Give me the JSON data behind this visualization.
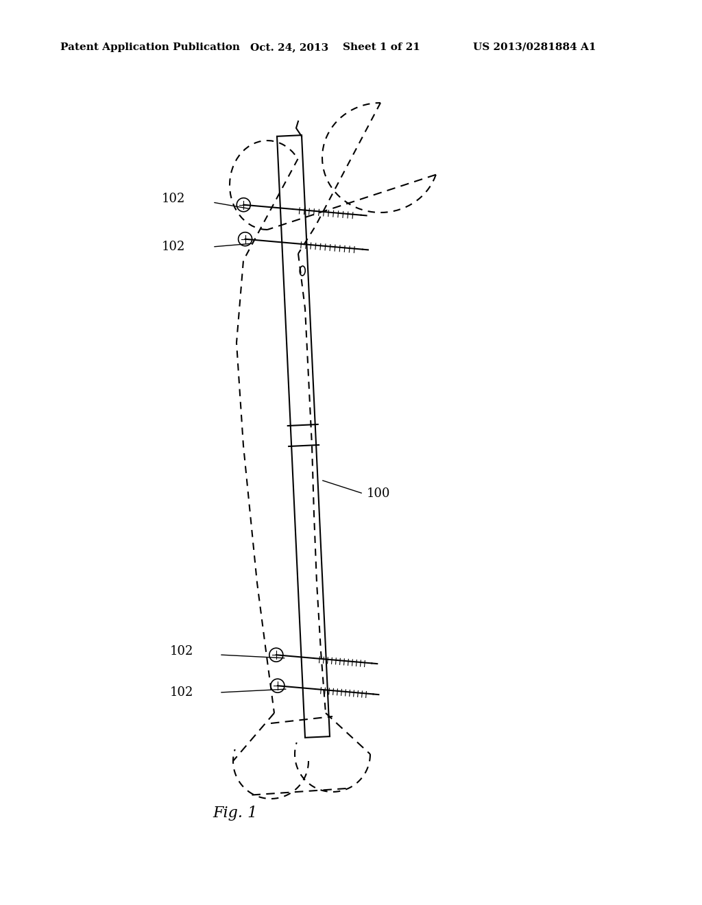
{
  "background_color": "#ffffff",
  "header_text": "Patent Application Publication",
  "header_date": "Oct. 24, 2013",
  "header_sheet": "Sheet 1 of 21",
  "header_patent": "US 2013/0281884 A1",
  "fig_label": "Fig. 1",
  "label_100": "100",
  "label_102": "102",
  "line_color": "#000000",
  "dashed_color": "#555555"
}
